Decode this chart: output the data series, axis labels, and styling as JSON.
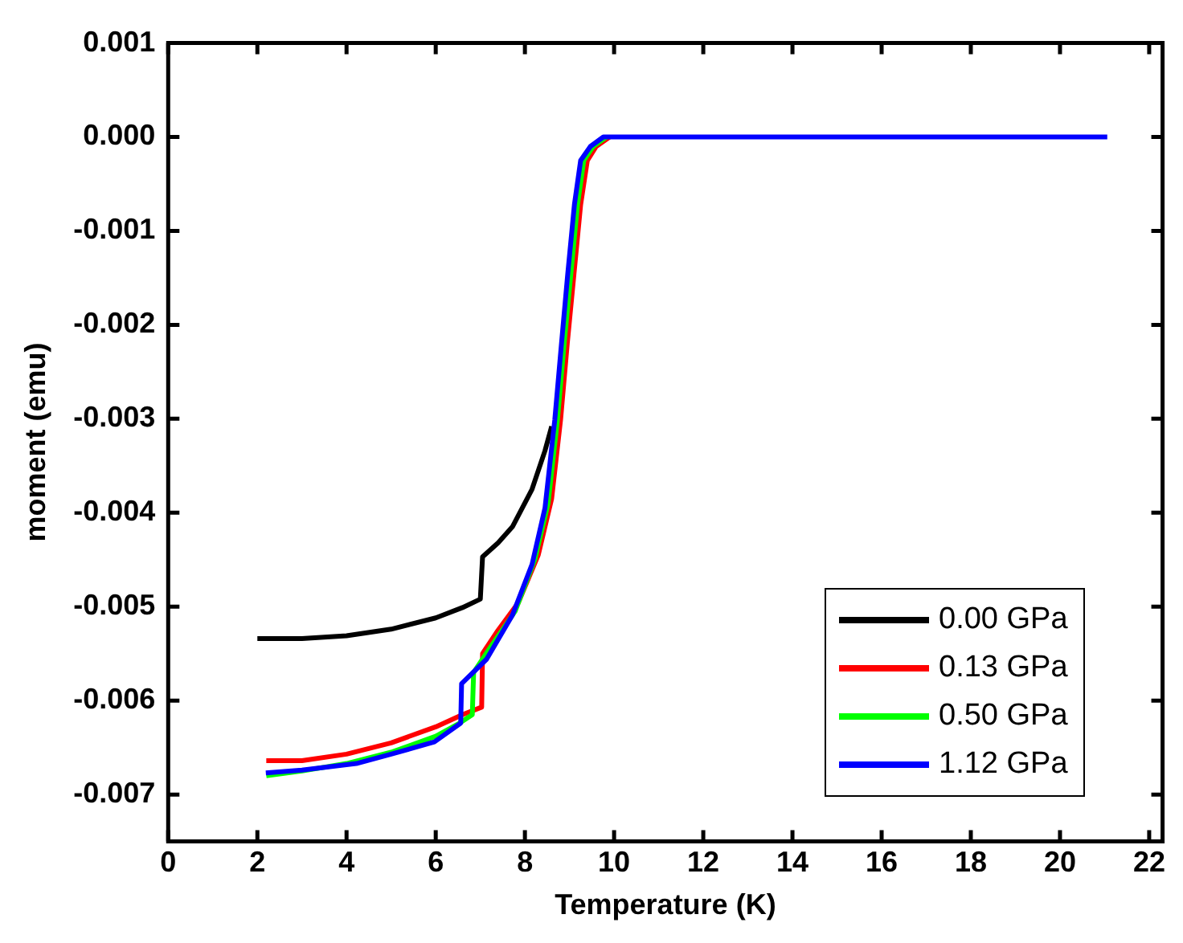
{
  "chart_data": {
    "type": "line",
    "xlabel": "Temperature (K)",
    "ylabel": "moment (emu)",
    "xlim": [
      0,
      22.3
    ],
    "ylim": [
      -0.0075,
      0.001
    ],
    "xticks": [
      0,
      2,
      4,
      6,
      8,
      10,
      12,
      14,
      16,
      18,
      20,
      22
    ],
    "yticks": [
      {
        "value": 0.001,
        "label": "0.001"
      },
      {
        "value": 0,
        "label": "0.000"
      },
      {
        "value": -0.001,
        "label": "-0.001"
      },
      {
        "value": -0.002,
        "label": "-0.002"
      },
      {
        "value": -0.003,
        "label": "-0.003"
      },
      {
        "value": -0.004,
        "label": "-0.004"
      },
      {
        "value": -0.005,
        "label": "-0.005"
      },
      {
        "value": -0.006,
        "label": "-0.006"
      },
      {
        "value": -0.007,
        "label": "-0.007"
      }
    ],
    "grid": false,
    "legend": "bottom right",
    "marker": "none",
    "line_style": "solid",
    "series": [
      {
        "name": "0.00 GPa",
        "color": "#000000",
        "x": [
          2,
          3,
          4,
          5,
          6,
          6.6,
          7,
          7.05,
          7.4,
          7.72,
          8.16,
          8.45,
          8.6
        ],
        "values": [
          -0.00534,
          -0.00534,
          -0.00531,
          -0.00524,
          -0.00512,
          -0.00501,
          -0.00492,
          -0.00447,
          -0.00432,
          -0.00415,
          -0.00375,
          -0.00334,
          -0.00308
        ]
      },
      {
        "name": "0.13 GPa",
        "color": "#ff0000",
        "x": [
          2.2,
          3,
          4,
          5,
          6,
          6.6,
          7.03,
          7.05,
          7.4,
          7.85,
          8.3,
          8.6,
          8.8,
          8.95,
          9.1,
          9.25,
          9.4,
          9.6,
          9.9
        ],
        "values": [
          -0.00664,
          -0.00664,
          -0.00657,
          -0.00645,
          -0.00628,
          -0.00615,
          -0.00607,
          -0.0055,
          -0.00525,
          -0.00496,
          -0.00445,
          -0.00385,
          -0.00301,
          -0.0022,
          -0.00146,
          -0.00072,
          -0.00025,
          -0.0001,
          0
        ]
      },
      {
        "name": "0.50 GPa",
        "color": "#00ff00",
        "x": [
          2.2,
          3,
          4,
          5,
          6,
          6.5,
          6.82,
          6.85,
          7.2,
          7.78,
          8.22,
          8.52,
          8.73,
          8.88,
          9.03,
          9.18,
          9.32,
          9.53,
          9.83
        ],
        "values": [
          -0.0068,
          -0.00675,
          -0.00667,
          -0.00655,
          -0.00638,
          -0.00625,
          -0.00615,
          -0.0057,
          -0.00545,
          -0.00505,
          -0.0045,
          -0.0039,
          -0.00301,
          -0.0022,
          -0.00146,
          -0.00072,
          -0.00025,
          -0.0001,
          0
        ]
      },
      {
        "name": "1.12 GPa",
        "color": "#0000ff",
        "x": [
          2.19,
          3,
          4.22,
          5,
          5.97,
          6.56,
          6.58,
          7.14,
          7.72,
          8.16,
          8.45,
          8.67,
          8.82,
          8.96,
          9.11,
          9.25,
          9.47,
          9.76,
          12,
          16,
          21.06
        ],
        "values": [
          -0.00677,
          -0.00674,
          -0.00667,
          -0.00657,
          -0.00644,
          -0.00624,
          -0.00582,
          -0.00556,
          -0.00509,
          -0.00455,
          -0.00395,
          -0.00301,
          -0.0022,
          -0.00146,
          -0.00072,
          -0.00025,
          -0.0001,
          0,
          0,
          0,
          0
        ]
      }
    ]
  }
}
